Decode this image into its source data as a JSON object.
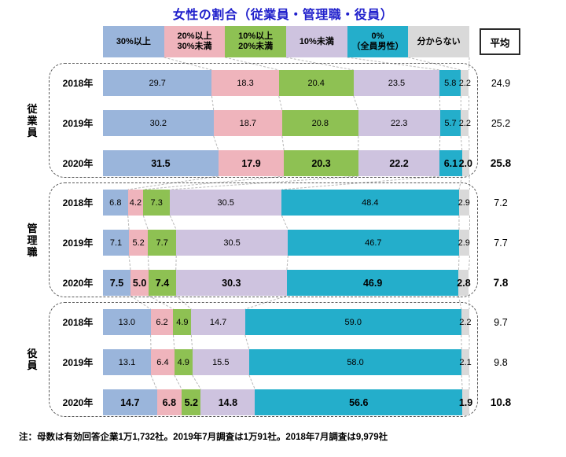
{
  "title": "女性の割合（従業員・管理職・役員）",
  "average_header": "平均",
  "footnote": "注：母数は有効回答企業1万1,732社。2019年7月調査は1万91社。2018年7月調査は9,979社",
  "colors": {
    "title_text": "#2121CC",
    "group_border_dash": "#5a5a5a",
    "connector_line": "#b8b8b8",
    "average_box_border": "#2b2b2b"
  },
  "chart_data": {
    "type": "bar",
    "orientation": "horizontal-stacked",
    "unit": "%",
    "x_range": [
      0,
      100
    ],
    "grid": false,
    "legend_position": "top",
    "legend": [
      {
        "label": "30%以上",
        "color": "#9AB5DB"
      },
      {
        "label": "20%以上\n30%未満",
        "color": "#EFB4BC"
      },
      {
        "label": "10%以上\n20%未満",
        "color": "#8EC153"
      },
      {
        "label": "10%未満",
        "color": "#CEC3DF"
      },
      {
        "label": "0%\n（全員男性）",
        "color": "#24AECB"
      },
      {
        "label": "分からない",
        "color": "#D9D9D9"
      }
    ],
    "groups": [
      {
        "name": "従業員",
        "rows": [
          {
            "year": "2018年",
            "values": [
              29.7,
              18.3,
              20.4,
              23.5,
              5.8,
              2.2
            ],
            "average": 24.9,
            "emphasis": false
          },
          {
            "year": "2019年",
            "values": [
              30.2,
              18.7,
              20.8,
              22.3,
              5.7,
              2.2
            ],
            "average": 25.2,
            "emphasis": false
          },
          {
            "year": "2020年",
            "values": [
              31.5,
              17.9,
              20.3,
              22.2,
              6.1,
              2.0
            ],
            "average": 25.8,
            "emphasis": true
          }
        ]
      },
      {
        "name": "管理職",
        "rows": [
          {
            "year": "2018年",
            "values": [
              6.8,
              4.2,
              7.3,
              30.5,
              48.4,
              2.9
            ],
            "average": 7.2,
            "emphasis": false
          },
          {
            "year": "2019年",
            "values": [
              7.1,
              5.2,
              7.7,
              30.5,
              46.7,
              2.9
            ],
            "average": 7.7,
            "emphasis": false
          },
          {
            "year": "2020年",
            "values": [
              7.5,
              5.0,
              7.4,
              30.3,
              46.9,
              2.8
            ],
            "average": 7.8,
            "emphasis": true
          }
        ]
      },
      {
        "name": "役員",
        "rows": [
          {
            "year": "2018年",
            "values": [
              13.0,
              6.2,
              4.9,
              14.7,
              59.0,
              2.2
            ],
            "average": 9.7,
            "emphasis": false
          },
          {
            "year": "2019年",
            "values": [
              13.1,
              6.4,
              4.9,
              15.5,
              58.0,
              2.1
            ],
            "average": 9.8,
            "emphasis": false
          },
          {
            "year": "2020年",
            "values": [
              14.7,
              6.8,
              5.2,
              14.8,
              56.6,
              1.9
            ],
            "average": 10.8,
            "emphasis": true
          }
        ]
      }
    ]
  }
}
